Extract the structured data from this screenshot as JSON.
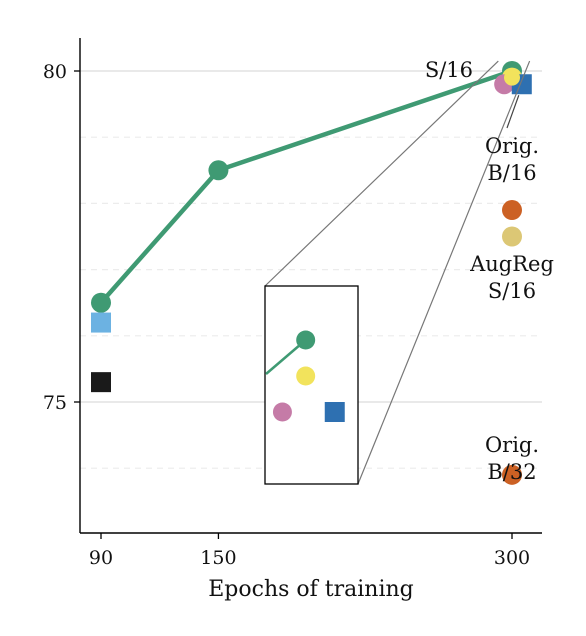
{
  "chart_data": {
    "type": "scatter",
    "title": "",
    "xlabel": "Epochs of training",
    "ylabel": "",
    "x_ticks": [
      90,
      150,
      300
    ],
    "y_ticks": [
      75,
      80
    ],
    "xlim": [
      83,
      312
    ],
    "ylim": [
      73.0,
      80.5
    ],
    "grid": "horizontal, major solid and minor dashed",
    "legend": "none",
    "colors": {
      "line": "#3f9a73",
      "blue_square": "#2e70b1",
      "light_blue_square": "#6cb2e2",
      "black_square": "#1a1a1a",
      "orange": "#cc6124",
      "tan": "#dcc775",
      "pink": "#c57ba7",
      "yellow": "#f2e35c"
    },
    "series": [
      {
        "name": "S/16",
        "kind": "line",
        "color": "#3f9a73",
        "x": [
          90,
          150,
          300
        ],
        "y": [
          76.5,
          78.5,
          80.0
        ]
      }
    ],
    "points": [
      {
        "x": 300,
        "y": 79.9,
        "marker": "circle",
        "color": "#f2e35c"
      },
      {
        "x": 296,
        "y": 79.8,
        "marker": "circle",
        "color": "#c57ba7"
      },
      {
        "x": 305,
        "y": 79.8,
        "marker": "square",
        "color": "#2e70b1"
      },
      {
        "x": 300,
        "y": 77.9,
        "marker": "circle",
        "color": "#cc6124"
      },
      {
        "x": 300,
        "y": 77.5,
        "marker": "circle",
        "color": "#dcc775"
      },
      {
        "x": 300,
        "y": 73.9,
        "marker": "circle",
        "color": "#cc6124"
      },
      {
        "x": 90,
        "y": 76.2,
        "marker": "square",
        "color": "#6cb2e2"
      },
      {
        "x": 90,
        "y": 75.3,
        "marker": "square",
        "color": "#1a1a1a"
      }
    ],
    "annotations": [
      {
        "lines": [
          "S/16"
        ]
      },
      {
        "lines": [
          "Orig.",
          "B/16"
        ]
      },
      {
        "lines": [
          "AugReg",
          "S/16"
        ]
      },
      {
        "lines": [
          "Orig.",
          "B/32"
        ]
      }
    ],
    "inset": "zoom box of the cluster near x=300, y=80"
  }
}
